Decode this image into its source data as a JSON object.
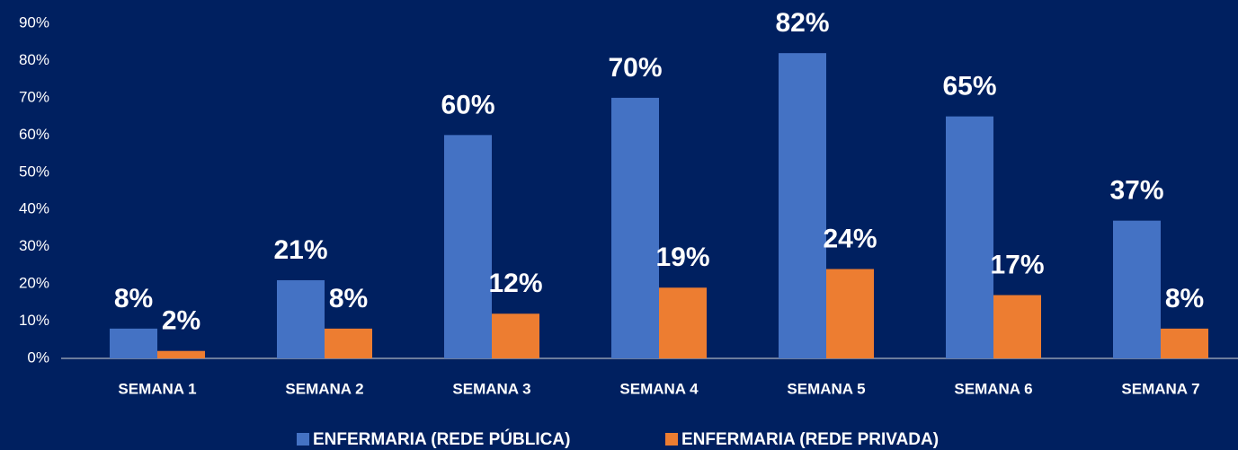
{
  "chart_data": {
    "type": "bar",
    "categories": [
      "SEMANA 1",
      "SEMANA 2",
      "SEMANA 3",
      "SEMANA 4",
      "SEMANA 5",
      "SEMANA 6",
      "SEMANA 7"
    ],
    "series": [
      {
        "name": "ENFERMARIA (REDE PÚBLICA)",
        "color": "#4472c4",
        "values": [
          8,
          21,
          60,
          70,
          82,
          65,
          37
        ],
        "value_labels": [
          "8%",
          "21%",
          "60%",
          "70%",
          "82%",
          "65%",
          "37%"
        ]
      },
      {
        "name": "ENFERMARIA (REDE PRIVADA)",
        "color": "#ed7d31",
        "values": [
          2,
          8,
          12,
          19,
          24,
          17,
          8
        ],
        "value_labels": [
          "2%",
          "8%",
          "12%",
          "19%",
          "24%",
          "17%",
          "8%"
        ]
      }
    ],
    "ylim": [
      0,
      90
    ],
    "yticks": [
      {
        "value": 0,
        "label": "0%"
      },
      {
        "value": 10,
        "label": "10%"
      },
      {
        "value": 20,
        "label": "20%"
      },
      {
        "value": 30,
        "label": "30%"
      },
      {
        "value": 40,
        "label": "40%"
      },
      {
        "value": 50,
        "label": "50%"
      },
      {
        "value": 60,
        "label": "60%"
      },
      {
        "value": 70,
        "label": "70%"
      },
      {
        "value": 80,
        "label": "80%"
      },
      {
        "value": 90,
        "label": "90%"
      }
    ],
    "grid": false,
    "legend": "bottom"
  }
}
